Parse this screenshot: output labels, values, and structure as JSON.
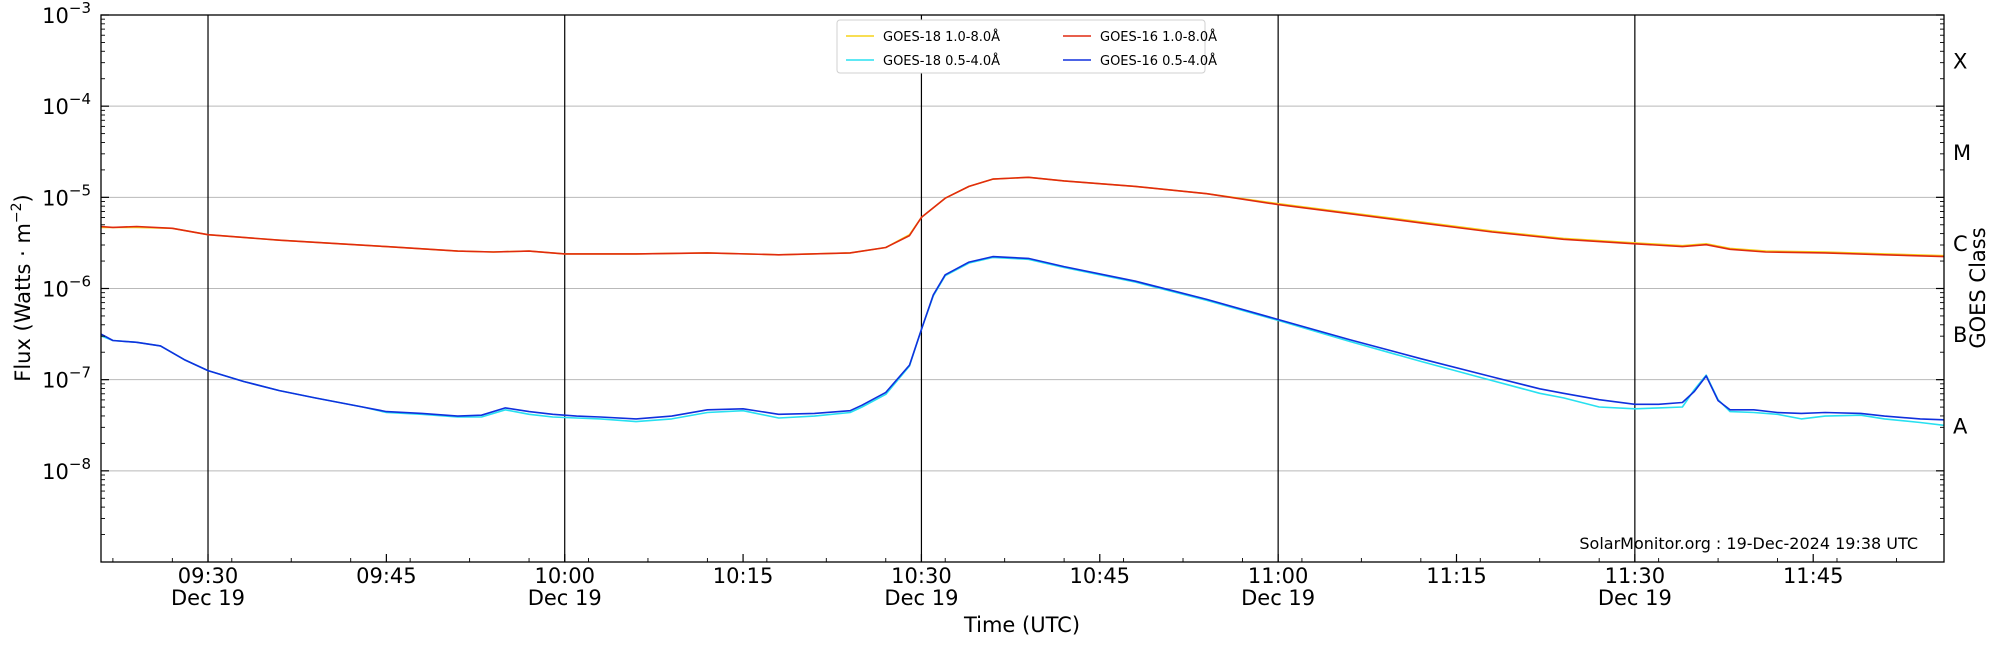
{
  "chart_data": {
    "type": "line",
    "xlabel": "Time (UTC)",
    "ylabel_parts": {
      "main": "Flux (Watts · m",
      "exp": "−2",
      "close": ")"
    },
    "right_label": "GOES Class",
    "credit": "SolarMonitor.org : 19-Dec-2024 19:38 UTC",
    "x_start": "09:21",
    "x_end": "11:56",
    "xlim_minutes": [
      0,
      155
    ],
    "ylim_log10": [
      -9,
      -3
    ],
    "ylim": [
      "1e-9",
      "1e-3"
    ],
    "y_scale": "log",
    "grid": "horizontal",
    "x_ticks": [
      {
        "t": 9,
        "label": "09:30",
        "sub": "Dec 19"
      },
      {
        "t": 24,
        "label": "09:45",
        "sub": ""
      },
      {
        "t": 39,
        "label": "10:00",
        "sub": "Dec 19"
      },
      {
        "t": 54,
        "label": "10:15",
        "sub": ""
      },
      {
        "t": 69,
        "label": "10:30",
        "sub": "Dec 19"
      },
      {
        "t": 84,
        "label": "10:45",
        "sub": ""
      },
      {
        "t": 99,
        "label": "11:00",
        "sub": "Dec 19"
      },
      {
        "t": 114,
        "label": "11:15",
        "sub": ""
      },
      {
        "t": 129,
        "label": "11:30",
        "sub": "Dec 19"
      },
      {
        "t": 144,
        "label": "11:45",
        "sub": ""
      }
    ],
    "vlines_t": [
      9,
      39,
      69,
      99,
      129
    ],
    "y_ticks": [
      {
        "exp": -8,
        "base": "10",
        "sup": "−8"
      },
      {
        "exp": -7,
        "base": "10",
        "sup": "−7"
      },
      {
        "exp": -6,
        "base": "10",
        "sup": "−6"
      },
      {
        "exp": -5,
        "base": "10",
        "sup": "−5"
      },
      {
        "exp": -4,
        "base": "10",
        "sup": "−4"
      },
      {
        "exp": -3,
        "base": "10",
        "sup": "−3"
      }
    ],
    "goes_classes": [
      {
        "label": "A",
        "exp": -7.5
      },
      {
        "label": "B",
        "exp": -6.5
      },
      {
        "label": "C",
        "exp": -5.5
      },
      {
        "label": "M",
        "exp": -4.5
      },
      {
        "label": "X",
        "exp": -3.5
      }
    ],
    "legend": [
      {
        "label": "GOES-18 1.0-8.0Å",
        "color": "#f5d31a"
      },
      {
        "label": "GOES-18 0.5-4.0Å",
        "color": "#28e0f0"
      },
      {
        "label": "GOES-16 1.0-8.0Å",
        "color": "#e02a10"
      },
      {
        "label": "GOES-16 0.5-4.0Å",
        "color": "#1030dd"
      }
    ],
    "series": [
      {
        "name": "GOES-18 1.0-8.0Å",
        "color": "#f5d31a",
        "points_log10": [
          [
            0,
            -5.33
          ],
          [
            3,
            -5.33
          ],
          [
            6,
            -5.34
          ],
          [
            9,
            -5.41
          ],
          [
            15,
            -5.47
          ],
          [
            24,
            -5.54
          ],
          [
            30,
            -5.59
          ],
          [
            33,
            -5.6
          ],
          [
            36,
            -5.59
          ],
          [
            39,
            -5.62
          ],
          [
            45,
            -5.62
          ],
          [
            51,
            -5.61
          ],
          [
            57,
            -5.63
          ],
          [
            63,
            -5.61
          ],
          [
            66,
            -5.55
          ],
          [
            68,
            -5.41
          ],
          [
            69,
            -5.22
          ],
          [
            71,
            -5.01
          ],
          [
            73,
            -4.88
          ],
          [
            75,
            -4.8
          ],
          [
            78,
            -4.78
          ],
          [
            81,
            -4.82
          ],
          [
            87,
            -4.88
          ],
          [
            93,
            -4.96
          ],
          [
            99,
            -5.07
          ],
          [
            105,
            -5.17
          ],
          [
            111,
            -5.27
          ],
          [
            117,
            -5.37
          ],
          [
            123,
            -5.45
          ],
          [
            129,
            -5.5
          ],
          [
            133,
            -5.53
          ],
          [
            135,
            -5.51
          ],
          [
            137,
            -5.56
          ],
          [
            140,
            -5.59
          ],
          [
            145,
            -5.6
          ],
          [
            150,
            -5.62
          ],
          [
            155,
            -5.64
          ]
        ]
      },
      {
        "name": "GOES-16 1.0-8.0Å",
        "color": "#e02a10",
        "points_log10": [
          [
            0,
            -5.32
          ],
          [
            1,
            -5.33
          ],
          [
            3,
            -5.32
          ],
          [
            6,
            -5.34
          ],
          [
            9,
            -5.41
          ],
          [
            15,
            -5.47
          ],
          [
            24,
            -5.54
          ],
          [
            30,
            -5.59
          ],
          [
            33,
            -5.6
          ],
          [
            36,
            -5.59
          ],
          [
            39,
            -5.62
          ],
          [
            45,
            -5.62
          ],
          [
            51,
            -5.61
          ],
          [
            57,
            -5.63
          ],
          [
            63,
            -5.61
          ],
          [
            66,
            -5.55
          ],
          [
            68,
            -5.42
          ],
          [
            69,
            -5.22
          ],
          [
            71,
            -5.01
          ],
          [
            73,
            -4.88
          ],
          [
            75,
            -4.8
          ],
          [
            78,
            -4.78
          ],
          [
            81,
            -4.82
          ],
          [
            87,
            -4.88
          ],
          [
            93,
            -4.96
          ],
          [
            99,
            -5.08
          ],
          [
            105,
            -5.18
          ],
          [
            111,
            -5.28
          ],
          [
            117,
            -5.38
          ],
          [
            123,
            -5.46
          ],
          [
            129,
            -5.51
          ],
          [
            133,
            -5.54
          ],
          [
            135,
            -5.52
          ],
          [
            137,
            -5.57
          ],
          [
            140,
            -5.6
          ],
          [
            145,
            -5.61
          ],
          [
            150,
            -5.63
          ],
          [
            155,
            -5.65
          ]
        ]
      },
      {
        "name": "GOES-18 0.5-4.0Å",
        "color": "#28e0f0",
        "points_log10": [
          [
            0,
            -6.52
          ],
          [
            1,
            -6.57
          ],
          [
            3,
            -6.59
          ],
          [
            5,
            -6.63
          ],
          [
            7,
            -6.78
          ],
          [
            9,
            -6.9
          ],
          [
            12,
            -7.02
          ],
          [
            15,
            -7.12
          ],
          [
            18,
            -7.2
          ],
          [
            22,
            -7.3
          ],
          [
            24,
            -7.36
          ],
          [
            27,
            -7.38
          ],
          [
            30,
            -7.41
          ],
          [
            32,
            -7.41
          ],
          [
            34,
            -7.33
          ],
          [
            36,
            -7.38
          ],
          [
            38,
            -7.41
          ],
          [
            40,
            -7.42
          ],
          [
            42,
            -7.43
          ],
          [
            45,
            -7.46
          ],
          [
            48,
            -7.43
          ],
          [
            51,
            -7.36
          ],
          [
            54,
            -7.34
          ],
          [
            57,
            -7.42
          ],
          [
            60,
            -7.4
          ],
          [
            63,
            -7.36
          ],
          [
            64,
            -7.3
          ],
          [
            66,
            -7.16
          ],
          [
            68,
            -6.85
          ],
          [
            69,
            -6.45
          ],
          [
            70,
            -6.08
          ],
          [
            71,
            -5.86
          ],
          [
            73,
            -5.72
          ],
          [
            75,
            -5.66
          ],
          [
            78,
            -5.68
          ],
          [
            81,
            -5.77
          ],
          [
            87,
            -5.93
          ],
          [
            93,
            -6.13
          ],
          [
            99,
            -6.35
          ],
          [
            105,
            -6.58
          ],
          [
            111,
            -6.8
          ],
          [
            117,
            -7.01
          ],
          [
            121,
            -7.15
          ],
          [
            123,
            -7.2
          ],
          [
            126,
            -7.3
          ],
          [
            129,
            -7.32
          ],
          [
            131,
            -7.31
          ],
          [
            133,
            -7.3
          ],
          [
            134,
            -7.11
          ],
          [
            135,
            -6.95
          ],
          [
            136,
            -7.22
          ],
          [
            137,
            -7.35
          ],
          [
            139,
            -7.36
          ],
          [
            141,
            -7.38
          ],
          [
            143,
            -7.43
          ],
          [
            145,
            -7.4
          ],
          [
            148,
            -7.39
          ],
          [
            150,
            -7.43
          ],
          [
            153,
            -7.47
          ],
          [
            155,
            -7.5
          ]
        ]
      },
      {
        "name": "GOES-16 0.5-4.0Å",
        "color": "#1030dd",
        "points_log10": [
          [
            0,
            -6.5
          ],
          [
            1,
            -6.57
          ],
          [
            3,
            -6.59
          ],
          [
            5,
            -6.63
          ],
          [
            7,
            -6.78
          ],
          [
            9,
            -6.9
          ],
          [
            12,
            -7.02
          ],
          [
            15,
            -7.12
          ],
          [
            18,
            -7.2
          ],
          [
            22,
            -7.3
          ],
          [
            24,
            -7.35
          ],
          [
            27,
            -7.37
          ],
          [
            30,
            -7.4
          ],
          [
            32,
            -7.39
          ],
          [
            34,
            -7.31
          ],
          [
            36,
            -7.35
          ],
          [
            38,
            -7.38
          ],
          [
            40,
            -7.4
          ],
          [
            42,
            -7.41
          ],
          [
            45,
            -7.43
          ],
          [
            48,
            -7.4
          ],
          [
            51,
            -7.33
          ],
          [
            54,
            -7.32
          ],
          [
            57,
            -7.38
          ],
          [
            60,
            -7.37
          ],
          [
            63,
            -7.34
          ],
          [
            64,
            -7.28
          ],
          [
            66,
            -7.14
          ],
          [
            68,
            -6.84
          ],
          [
            69,
            -6.45
          ],
          [
            70,
            -6.07
          ],
          [
            71,
            -5.85
          ],
          [
            73,
            -5.71
          ],
          [
            75,
            -5.65
          ],
          [
            78,
            -5.67
          ],
          [
            81,
            -5.76
          ],
          [
            87,
            -5.92
          ],
          [
            93,
            -6.12
          ],
          [
            99,
            -6.34
          ],
          [
            105,
            -6.56
          ],
          [
            111,
            -6.77
          ],
          [
            117,
            -6.97
          ],
          [
            121,
            -7.1
          ],
          [
            123,
            -7.15
          ],
          [
            126,
            -7.22
          ],
          [
            129,
            -7.27
          ],
          [
            131,
            -7.27
          ],
          [
            133,
            -7.25
          ],
          [
            134,
            -7.13
          ],
          [
            135,
            -6.96
          ],
          [
            136,
            -7.23
          ],
          [
            137,
            -7.33
          ],
          [
            139,
            -7.33
          ],
          [
            141,
            -7.36
          ],
          [
            143,
            -7.37
          ],
          [
            145,
            -7.36
          ],
          [
            148,
            -7.37
          ],
          [
            150,
            -7.4
          ],
          [
            153,
            -7.43
          ],
          [
            155,
            -7.44
          ]
        ]
      }
    ]
  }
}
